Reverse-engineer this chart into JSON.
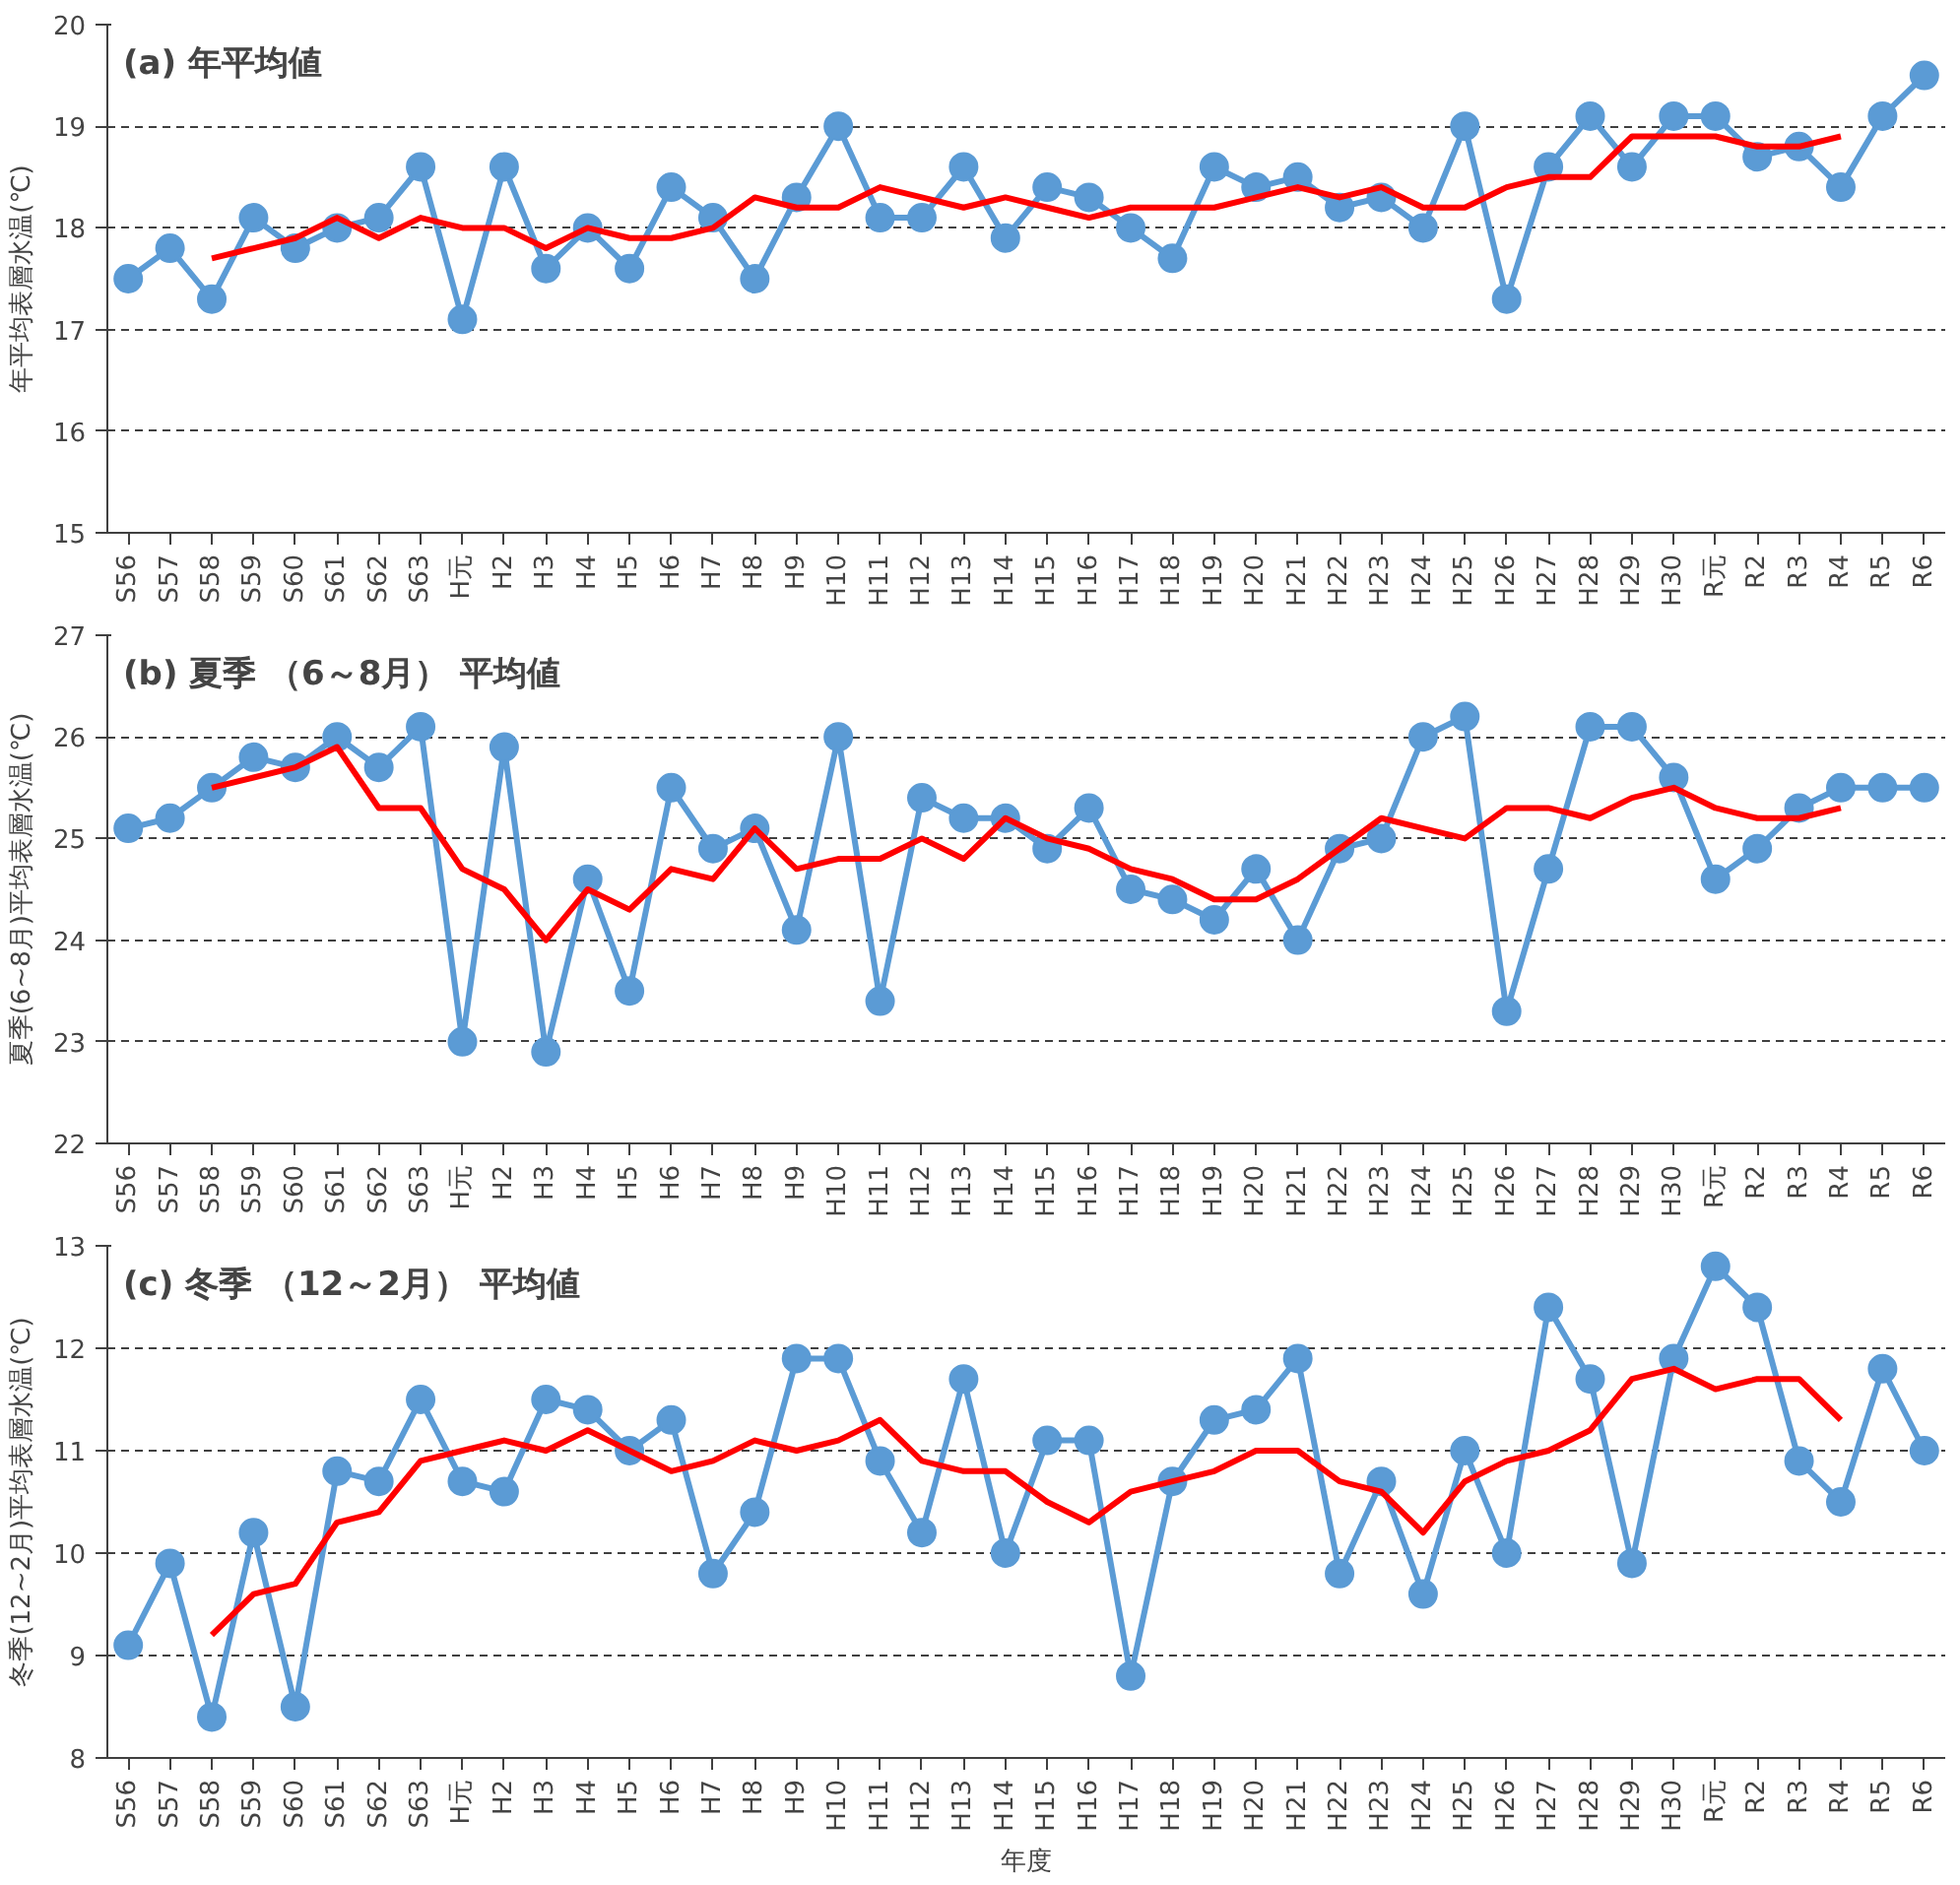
{
  "chart_data": [
    {
      "type": "line",
      "title": "(a) 年平均値",
      "ylabel": "年平均表層水温(℃)",
      "categories": [
        "S56",
        "S57",
        "S58",
        "S59",
        "S60",
        "S61",
        "S62",
        "S63",
        "H元",
        "H2",
        "H3",
        "H4",
        "H5",
        "H6",
        "H7",
        "H8",
        "H9",
        "H10",
        "H11",
        "H12",
        "H13",
        "H14",
        "H15",
        "H16",
        "H17",
        "H18",
        "H19",
        "H20",
        "H21",
        "H22",
        "H23",
        "H24",
        "H25",
        "H26",
        "H27",
        "H28",
        "H29",
        "H30",
        "R元",
        "R2",
        "R3",
        "R4",
        "R5",
        "R6"
      ],
      "series": [
        {
          "color": "#5b9bd5",
          "marker": "circle",
          "values": [
            17.5,
            17.8,
            17.3,
            18.1,
            17.8,
            18.0,
            18.1,
            18.6,
            17.1,
            18.6,
            17.6,
            18.0,
            17.6,
            18.4,
            18.1,
            17.5,
            18.3,
            19.0,
            18.1,
            18.1,
            18.6,
            17.9,
            18.4,
            18.3,
            18.0,
            17.7,
            18.6,
            18.4,
            18.5,
            18.2,
            18.3,
            18.0,
            19.0,
            17.3,
            18.6,
            19.1,
            18.6,
            19.1,
            19.1,
            18.7,
            18.8,
            18.4,
            19.1,
            19.5
          ]
        },
        {
          "color": "#ff0000",
          "marker": "none",
          "values": [
            null,
            null,
            17.7,
            17.8,
            17.9,
            18.1,
            17.9,
            18.1,
            18.0,
            18.0,
            17.8,
            18.0,
            17.9,
            17.9,
            18.0,
            18.3,
            18.2,
            18.2,
            18.4,
            18.3,
            18.2,
            18.3,
            18.2,
            18.1,
            18.2,
            18.2,
            18.2,
            18.3,
            18.4,
            18.3,
            18.4,
            18.2,
            18.2,
            18.4,
            18.5,
            18.5,
            18.9,
            18.9,
            18.9,
            18.8,
            18.8,
            18.9,
            null,
            null
          ]
        }
      ],
      "ylim": [
        15,
        20
      ],
      "yticks": [
        15,
        16,
        17,
        18,
        19,
        20
      ],
      "grid": "y"
    },
    {
      "type": "line",
      "title": "(b) 夏季 （6～8月） 平均値",
      "ylabel": "夏季(6~8月)平均表層水温(℃)",
      "categories": [
        "S56",
        "S57",
        "S58",
        "S59",
        "S60",
        "S61",
        "S62",
        "S63",
        "H元",
        "H2",
        "H3",
        "H4",
        "H5",
        "H6",
        "H7",
        "H8",
        "H9",
        "H10",
        "H11",
        "H12",
        "H13",
        "H14",
        "H15",
        "H16",
        "H17",
        "H18",
        "H19",
        "H20",
        "H21",
        "H22",
        "H23",
        "H24",
        "H25",
        "H26",
        "H27",
        "H28",
        "H29",
        "H30",
        "R元",
        "R2",
        "R3",
        "R4",
        "R5",
        "R6"
      ],
      "series": [
        {
          "color": "#5b9bd5",
          "marker": "circle",
          "values": [
            25.1,
            25.2,
            25.5,
            25.8,
            25.7,
            26.0,
            25.7,
            26.1,
            23.0,
            25.9,
            22.9,
            24.6,
            23.5,
            25.5,
            24.9,
            25.1,
            24.1,
            26.0,
            23.4,
            25.4,
            25.2,
            25.2,
            24.9,
            25.3,
            24.5,
            24.4,
            24.2,
            24.7,
            24.0,
            24.9,
            25.0,
            26.0,
            26.2,
            23.3,
            24.7,
            26.1,
            26.1,
            25.6,
            24.6,
            24.9,
            25.3,
            25.5,
            25.5,
            25.5
          ]
        },
        {
          "color": "#ff0000",
          "marker": "none",
          "values": [
            null,
            null,
            25.5,
            25.6,
            25.7,
            25.9,
            25.3,
            25.3,
            24.7,
            24.5,
            24.0,
            24.5,
            24.3,
            24.7,
            24.6,
            25.1,
            24.7,
            24.8,
            24.8,
            25.0,
            24.8,
            25.2,
            25.0,
            24.9,
            24.7,
            24.6,
            24.4,
            24.4,
            24.6,
            24.9,
            25.2,
            25.1,
            25.0,
            25.3,
            25.3,
            25.2,
            25.4,
            25.5,
            25.3,
            25.2,
            25.2,
            25.3,
            null,
            null
          ]
        }
      ],
      "ylim": [
        22,
        27
      ],
      "yticks": [
        22,
        23,
        24,
        25,
        26,
        27
      ],
      "grid": "y"
    },
    {
      "type": "line",
      "title": "(c) 冬季 （12～2月） 平均値",
      "ylabel": "冬季(12~2月)平均表層水温(℃)",
      "xlabel": "年度",
      "categories": [
        "S56",
        "S57",
        "S58",
        "S59",
        "S60",
        "S61",
        "S62",
        "S63",
        "H元",
        "H2",
        "H3",
        "H4",
        "H5",
        "H6",
        "H7",
        "H8",
        "H9",
        "H10",
        "H11",
        "H12",
        "H13",
        "H14",
        "H15",
        "H16",
        "H17",
        "H18",
        "H19",
        "H20",
        "H21",
        "H22",
        "H23",
        "H24",
        "H25",
        "H26",
        "H27",
        "H28",
        "H29",
        "H30",
        "R元",
        "R2",
        "R3",
        "R4",
        "R5",
        "R6"
      ],
      "series": [
        {
          "color": "#5b9bd5",
          "marker": "circle",
          "values": [
            9.1,
            9.9,
            8.4,
            10.2,
            8.5,
            10.8,
            10.7,
            11.5,
            10.7,
            10.6,
            11.5,
            11.4,
            11.0,
            11.3,
            9.8,
            10.4,
            11.9,
            11.9,
            10.9,
            10.2,
            11.7,
            10.0,
            11.1,
            11.1,
            8.8,
            10.7,
            11.3,
            11.4,
            11.9,
            9.8,
            10.7,
            9.6,
            11.0,
            10.0,
            12.4,
            11.7,
            9.9,
            11.9,
            12.8,
            12.4,
            10.9,
            10.5,
            11.8,
            11.0
          ]
        },
        {
          "color": "#ff0000",
          "marker": "none",
          "values": [
            null,
            null,
            9.2,
            9.6,
            9.7,
            10.3,
            10.4,
            10.9,
            11.0,
            11.1,
            11.0,
            11.2,
            11.0,
            10.8,
            10.9,
            11.1,
            11.0,
            11.1,
            11.3,
            10.9,
            10.8,
            10.8,
            10.5,
            10.3,
            10.6,
            10.7,
            10.8,
            11.0,
            11.0,
            10.7,
            10.6,
            10.2,
            10.7,
            10.9,
            11.0,
            11.2,
            11.7,
            11.8,
            11.6,
            11.7,
            11.7,
            11.3,
            null,
            null
          ]
        }
      ],
      "ylim": [
        8,
        13
      ],
      "yticks": [
        8,
        9,
        10,
        11,
        12,
        13
      ],
      "grid": "y"
    }
  ]
}
